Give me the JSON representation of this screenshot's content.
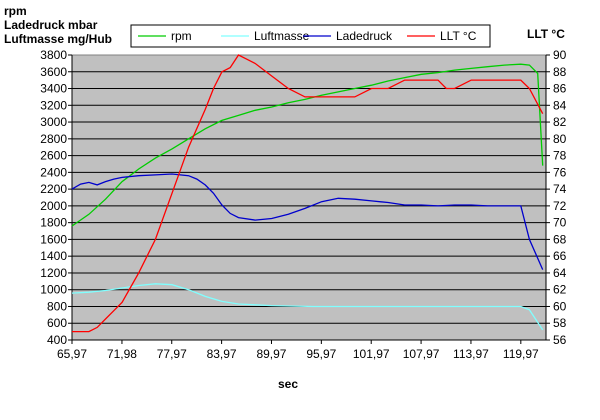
{
  "chart_data": {
    "type": "line",
    "title_lines": [
      "rpm",
      "Ladedruck mbar",
      "Luftmasse mg/Hub"
    ],
    "xlabel": "sec",
    "y2label": "LLT °C",
    "xlim": [
      65.97,
      123
    ],
    "ylim": [
      400,
      3800
    ],
    "y2lim": [
      56,
      90
    ],
    "x_ticks": [
      "65,97",
      "71,98",
      "77,97",
      "83,97",
      "89,97",
      "95,97",
      "101,97",
      "107,97",
      "113,97",
      "119,97"
    ],
    "x_tick_values": [
      65.97,
      71.98,
      77.97,
      83.97,
      89.97,
      95.97,
      101.97,
      107.97,
      113.97,
      119.97
    ],
    "y_ticks": [
      "400",
      "600",
      "800",
      "1000",
      "1200",
      "1400",
      "1600",
      "1800",
      "2000",
      "2200",
      "2400",
      "2600",
      "2800",
      "3000",
      "3200",
      "3400",
      "3600",
      "3800"
    ],
    "y2_ticks": [
      "56",
      "58",
      "60",
      "62",
      "64",
      "66",
      "68",
      "70",
      "72",
      "74",
      "76",
      "78",
      "80",
      "82",
      "84",
      "86",
      "88",
      "90"
    ],
    "grid": true,
    "legend_position": "top",
    "plot_background": "#c0c0c0",
    "series": [
      {
        "name": "rpm",
        "axis": "left",
        "color": "#00cc00",
        "x": [
          65.97,
          68,
          70,
          72,
          74,
          76,
          78,
          80,
          82,
          84,
          86,
          88,
          90,
          92,
          94,
          96,
          98,
          100,
          102,
          104,
          106,
          108,
          110,
          112,
          114,
          116,
          118,
          119.97,
          121,
          122,
          122.6
        ],
        "y": [
          1760,
          1900,
          2080,
          2290,
          2440,
          2570,
          2680,
          2800,
          2920,
          3020,
          3080,
          3140,
          3180,
          3230,
          3270,
          3320,
          3360,
          3400,
          3440,
          3490,
          3530,
          3570,
          3590,
          3620,
          3640,
          3660,
          3680,
          3690,
          3680,
          3580,
          2480
        ]
      },
      {
        "name": "Luftmasse",
        "axis": "left",
        "color": "#80ffff",
        "x": [
          65.97,
          68,
          70,
          72,
          74,
          76,
          78,
          80,
          82,
          84,
          86,
          88,
          90,
          95,
          100,
          105,
          110,
          115,
          119.97,
          121,
          122.6
        ],
        "y": [
          960,
          970,
          990,
          1020,
          1050,
          1070,
          1060,
          1000,
          920,
          860,
          830,
          820,
          810,
          800,
          800,
          800,
          800,
          800,
          800,
          760,
          520
        ]
      },
      {
        "name": "Ladedruck",
        "axis": "left",
        "color": "#0000cc",
        "x": [
          65.97,
          67,
          68,
          69,
          70,
          71,
          72,
          74,
          76,
          78,
          80,
          81,
          82,
          83,
          84,
          85,
          86,
          88,
          90,
          92,
          94,
          96,
          98,
          100,
          102,
          104,
          106,
          108,
          110,
          112,
          114,
          116,
          118,
          119.97,
          121,
          122.6
        ],
        "y": [
          2200,
          2260,
          2280,
          2250,
          2290,
          2320,
          2340,
          2360,
          2370,
          2380,
          2360,
          2320,
          2250,
          2150,
          2010,
          1910,
          1860,
          1830,
          1850,
          1900,
          1970,
          2050,
          2090,
          2080,
          2060,
          2040,
          2010,
          2010,
          2000,
          2010,
          2010,
          2000,
          2000,
          2000,
          1600,
          1240
        ]
      },
      {
        "name": "LLT °C",
        "axis": "right",
        "color": "#ff0000",
        "x": [
          65.97,
          67,
          68,
          69,
          70,
          71,
          72,
          74,
          76,
          78,
          80,
          82,
          83,
          84,
          85,
          86,
          87,
          88,
          90,
          92,
          94,
          96,
          98,
          100,
          102,
          104,
          106,
          108,
          110,
          111,
          112,
          113,
          114,
          116,
          118,
          119.97,
          121,
          122.6
        ],
        "y": [
          57,
          57,
          57,
          57.5,
          58.5,
          59.5,
          60.5,
          64,
          68,
          73.5,
          79,
          83.5,
          86,
          88,
          88.5,
          90,
          89.5,
          89,
          87.5,
          86,
          85,
          85,
          85,
          85,
          86,
          86,
          87,
          87,
          87,
          86,
          86,
          86.5,
          87,
          87,
          87,
          87,
          86,
          83
        ]
      }
    ]
  }
}
